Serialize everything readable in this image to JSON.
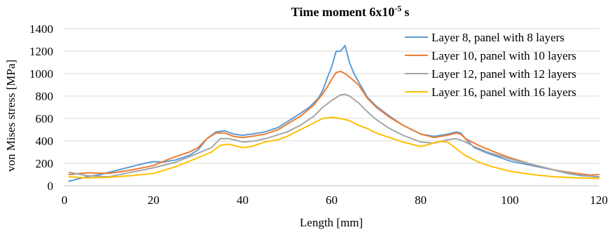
{
  "chart_data": {
    "type": "line",
    "title": "Time moment 6x10",
    "title_exponent": "-5",
    "title_unit": "s",
    "xlabel": "Length [mm]",
    "ylabel": "von Mises stress [MPa]",
    "xlim": [
      0,
      120
    ],
    "ylim": [
      0,
      1400
    ],
    "xticks": [
      0,
      20,
      40,
      60,
      80,
      100,
      120
    ],
    "yticks": [
      0,
      200,
      400,
      600,
      800,
      1000,
      1200,
      1400
    ],
    "grid": "horizontal",
    "legend_position": "top-right",
    "series": [
      {
        "name": "Layer 8, panel with 8 layers",
        "color": "#5b9bd5",
        "x": [
          1,
          3,
          5,
          8,
          10,
          12,
          15,
          18,
          20,
          22,
          25,
          28,
          30,
          32,
          34,
          36,
          38,
          40,
          42,
          45,
          48,
          50,
          52,
          55,
          57,
          58,
          59,
          60,
          61,
          62,
          63,
          64,
          65,
          68,
          70,
          73,
          76,
          80,
          83,
          86,
          88,
          89,
          90,
          92,
          95,
          98,
          100,
          105,
          110,
          113,
          116,
          120
        ],
        "y": [
          40,
          60,
          80,
          100,
          120,
          140,
          170,
          200,
          215,
          210,
          230,
          270,
          320,
          420,
          480,
          490,
          460,
          450,
          460,
          480,
          520,
          570,
          620,
          700,
          780,
          850,
          960,
          1060,
          1200,
          1200,
          1250,
          1100,
          1000,
          790,
          710,
          620,
          540,
          460,
          440,
          460,
          480,
          470,
          420,
          340,
          290,
          250,
          220,
          180,
          140,
          110,
          90,
          80
        ]
      },
      {
        "name": "Layer 10, panel with 10 layers",
        "color": "#ed7d31",
        "x": [
          1,
          5,
          10,
          15,
          20,
          23,
          25,
          28,
          30,
          32,
          34,
          36,
          38,
          40,
          42,
          45,
          48,
          50,
          53,
          56,
          58,
          59,
          60,
          61,
          62,
          63,
          64,
          66,
          68,
          70,
          73,
          76,
          80,
          83,
          86,
          88,
          89,
          90,
          93,
          96,
          100,
          105,
          110,
          115,
          118,
          120
        ],
        "y": [
          100,
          115,
          110,
          140,
          180,
          230,
          260,
          300,
          340,
          420,
          470,
          470,
          440,
          430,
          440,
          460,
          500,
          550,
          620,
          720,
          820,
          880,
          950,
          1010,
          1020,
          1000,
          970,
          900,
          780,
          700,
          610,
          540,
          460,
          430,
          450,
          470,
          460,
          420,
          360,
          310,
          250,
          190,
          140,
          110,
          95,
          100
        ]
      },
      {
        "name": "Layer 12, panel with 12 layers",
        "color": "#a5a5a5",
        "x": [
          1,
          5,
          10,
          15,
          20,
          25,
          30,
          33,
          35,
          37,
          40,
          43,
          46,
          50,
          53,
          56,
          58,
          60,
          62,
          63,
          64,
          66,
          68,
          70,
          73,
          76,
          80,
          83,
          86,
          88,
          90,
          92,
          95,
          100,
          105,
          110,
          115,
          120
        ],
        "y": [
          120,
          90,
          80,
          120,
          160,
          210,
          290,
          340,
          420,
          420,
          390,
          400,
          430,
          480,
          540,
          620,
          700,
          760,
          810,
          815,
          800,
          740,
          660,
          590,
          510,
          450,
          390,
          380,
          410,
          420,
          390,
          350,
          300,
          240,
          190,
          140,
          100,
          75
        ]
      },
      {
        "name": "Layer 16, panel with 16 layers",
        "color": "#ffc000",
        "x": [
          1,
          5,
          10,
          15,
          20,
          25,
          30,
          33,
          35,
          37,
          40,
          42,
          45,
          48,
          50,
          53,
          56,
          58,
          60,
          62,
          64,
          66,
          68,
          70,
          73,
          76,
          80,
          82,
          84,
          86,
          88,
          90,
          93,
          96,
          100,
          105,
          110,
          115,
          120
        ],
        "y": [
          80,
          70,
          75,
          90,
          110,
          170,
          250,
          300,
          360,
          370,
          340,
          350,
          390,
          410,
          440,
          500,
          560,
          600,
          610,
          600,
          580,
          540,
          510,
          470,
          430,
          390,
          350,
          370,
          395,
          390,
          330,
          270,
          210,
          170,
          130,
          100,
          80,
          70,
          65
        ]
      }
    ]
  }
}
